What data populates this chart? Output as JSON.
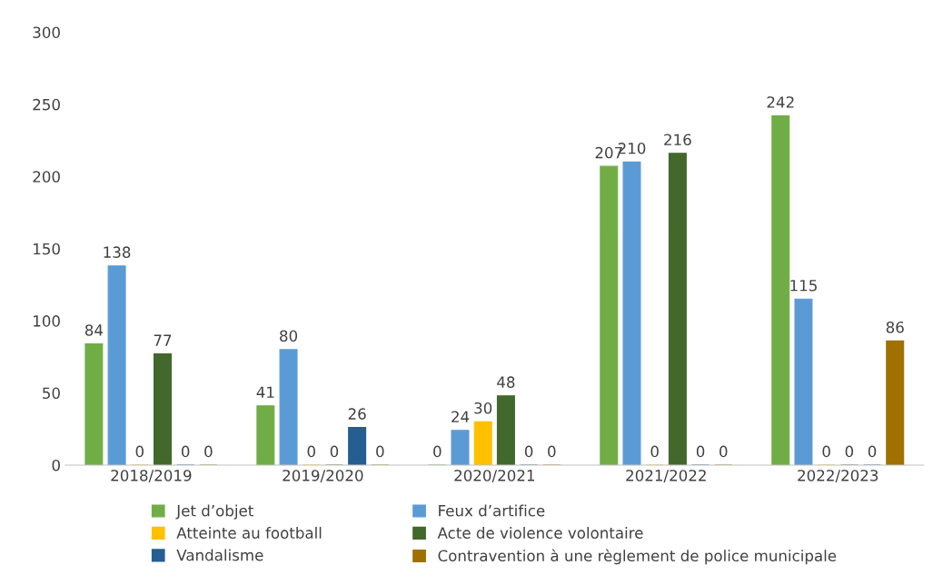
{
  "chart_data": {
    "type": "bar",
    "categories": [
      "2018/2019",
      "2019/2020",
      "2020/2021",
      "2021/2022",
      "2022/2023"
    ],
    "series": [
      {
        "name": "Jet d’objet",
        "color": "#70ad47",
        "values": [
          84,
          41,
          0,
          207,
          242
        ]
      },
      {
        "name": "Feux d’artifice",
        "color": "#5b9bd5",
        "values": [
          138,
          80,
          24,
          210,
          115
        ]
      },
      {
        "name": "Atteinte au football",
        "color": "#ffc000",
        "values": [
          0,
          0,
          30,
          0,
          0
        ]
      },
      {
        "name": "Acte de violence volontaire",
        "color": "#43682b",
        "values": [
          77,
          0,
          48,
          216,
          0
        ]
      },
      {
        "name": "Vandalisme",
        "color": "#255e91",
        "values": [
          0,
          26,
          0,
          0,
          0
        ]
      },
      {
        "name": "Contravention à une règlement de police municipale",
        "color": "#9e7100",
        "values": [
          0,
          0,
          0,
          0,
          86
        ]
      }
    ],
    "ylim": [
      0,
      300
    ],
    "yticks": [
      0,
      50,
      100,
      150,
      200,
      250,
      300
    ],
    "grid": false,
    "legend": "bottom",
    "data_labels": true
  }
}
